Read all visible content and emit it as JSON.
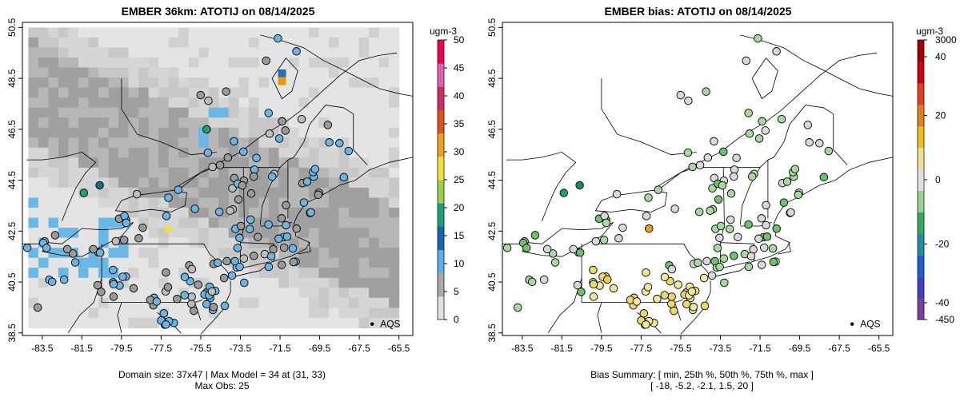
{
  "left_panel": {
    "title": "EMBER 36km: ATOTIJ on 08/14/2025",
    "colorbar_unit": "ugm-3",
    "colorbar_ticks": [
      "0",
      "5",
      "10",
      "15",
      "20",
      "25",
      "30",
      "35",
      "40",
      "45",
      "50"
    ],
    "colorbar_min": 0,
    "colorbar_max": 50,
    "legend_label": "AQS",
    "footer_line1": "Domain size: 37x47 | Max Model = 34 at (31, 33)",
    "footer_line2": "Max Obs: 25"
  },
  "right_panel": {
    "title": "EMBER bias: ATOTIJ on 08/14/2025",
    "colorbar_unit": "ugm-3",
    "colorbar_ticks": [
      "3000",
      "40",
      "20",
      "0",
      "-20",
      "-40",
      "-450"
    ],
    "legend_label": "AQS",
    "footer_line1": "Bias Summary: [ min, 25th %, 50th %, 75th %, max ]",
    "footer_line2": "[ -18,   -5.2,   -2.1,   1.5,   20 ]"
  },
  "axes": {
    "x_ticks": [
      "-83.5",
      "-81.5",
      "-79.5",
      "-77.5",
      "-75.5",
      "-73.5",
      "-71.5",
      "-69.5",
      "-67.5",
      "-65.5"
    ],
    "y_ticks": [
      "38.5",
      "40.5",
      "42.5",
      "44.5",
      "46.5",
      "48.5",
      "50.5"
    ],
    "lon_range": [
      -84.5,
      -64.8
    ],
    "lat_range": [
      38.4,
      50.7
    ]
  },
  "colors": {
    "model_low": "#e4e4e4",
    "model_mid": "#a0a0a0",
    "model_blue": "#6bb7e6",
    "bias_zero": "#e0e0e0",
    "bias_pos": "#e6b800",
    "bias_neg": "#72c172"
  }
}
